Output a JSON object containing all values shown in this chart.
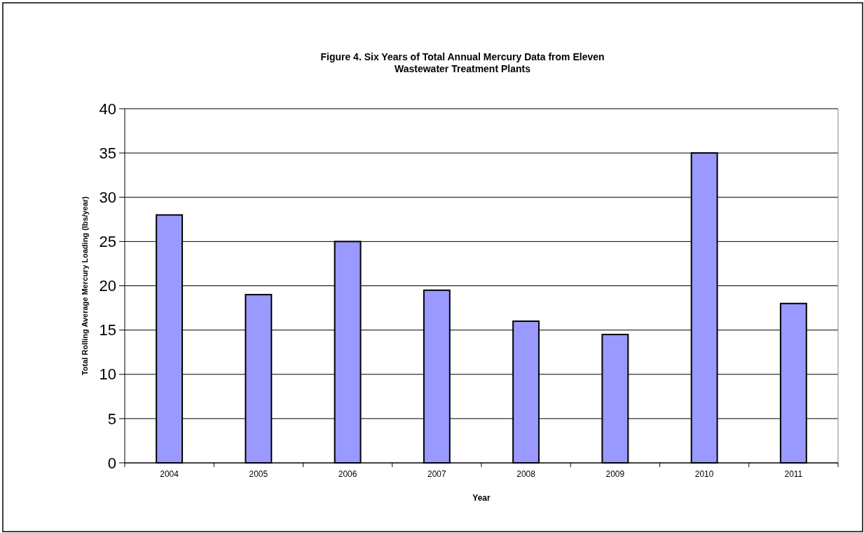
{
  "chart_data": {
    "type": "bar",
    "title": "Figure 4. Six Years of Total Annual Mercury Data from Eleven\nWastewater Treatment Plants",
    "xlabel": "Year",
    "ylabel": "Total Rolling Average Mercury Loading (lbs/year)",
    "categories": [
      "2004",
      "2005",
      "2006",
      "2007",
      "2008",
      "2009",
      "2010",
      "2011"
    ],
    "values": [
      28,
      19,
      25,
      19.5,
      16,
      14.5,
      35,
      18
    ],
    "color": "#9999ff",
    "ylim": [
      0,
      40
    ],
    "yticks": [
      0,
      5,
      10,
      15,
      20,
      25,
      30,
      35,
      40
    ],
    "grid": "y"
  }
}
